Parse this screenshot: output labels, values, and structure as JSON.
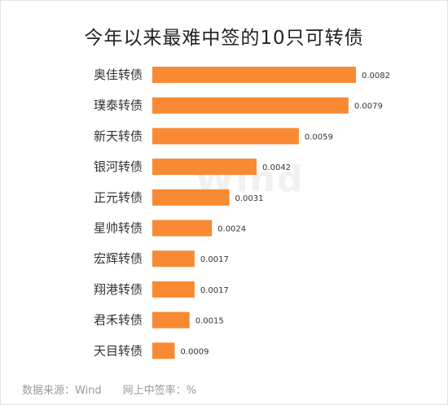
{
  "chart_data": {
    "type": "bar",
    "orientation": "horizontal",
    "title": "今年以来最难中签的10只可转债",
    "categories": [
      "奥佳转债",
      "璞泰转债",
      "新天转债",
      "银河转债",
      "正元转债",
      "星帅转债",
      "宏辉转债",
      "翔港转债",
      "君禾转债",
      "天目转债"
    ],
    "values": [
      0.0082,
      0.0079,
      0.0059,
      0.0042,
      0.0031,
      0.0024,
      0.0017,
      0.0017,
      0.0015,
      0.0009
    ],
    "value_labels": [
      "0.0082",
      "0.0079",
      "0.0059",
      "0.0042",
      "0.0031",
      "0.0024",
      "0.0017",
      "0.0017",
      "0.0015",
      "0.0009"
    ],
    "xlim": [
      0,
      0.0082
    ],
    "bar_color": "#f98a33",
    "grid": false,
    "legend": "none"
  },
  "footer": {
    "source": "数据来源：Wind",
    "unit": "网上中签率：%"
  },
  "watermark": "Wind"
}
